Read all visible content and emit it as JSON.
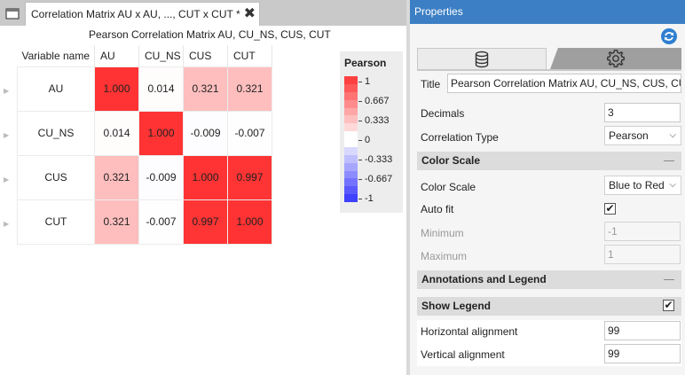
{
  "tab": {
    "label": "Correlation Matrix AU x AU, ..., CUT x CUT *",
    "close_glyph": "✖"
  },
  "matrix": {
    "title": "Pearson Correlation Matrix AU, CU_NS, CUS, CUT",
    "corner_label": "Variable name",
    "columns": [
      "AU",
      "CU_NS",
      "CUS",
      "CUT"
    ],
    "rows": [
      {
        "label": "AU",
        "values": [
          "1.000",
          "0.014",
          "0.321",
          "0.321"
        ]
      },
      {
        "label": "CU_NS",
        "values": [
          "0.014",
          "1.000",
          "-0.009",
          "-0.007"
        ]
      },
      {
        "label": "CUS",
        "values": [
          "0.321",
          "-0.009",
          "1.000",
          "0.997"
        ]
      },
      {
        "label": "CUT",
        "values": [
          "0.321",
          "-0.007",
          "0.997",
          "1.000"
        ]
      }
    ],
    "numeric": [
      [
        1.0,
        0.014,
        0.321,
        0.321
      ],
      [
        0.014,
        1.0,
        -0.009,
        -0.007
      ],
      [
        0.321,
        -0.009,
        1.0,
        0.997
      ],
      [
        0.321,
        -0.007,
        0.997,
        1.0
      ]
    ],
    "color_scale": {
      "positive": "#ff3333",
      "negative": "#3333ff",
      "neutral": "#ffffff"
    }
  },
  "legend": {
    "title": "Pearson",
    "ticks": [
      "1",
      "0.667",
      "0.333",
      "0",
      "-0.333",
      "-0.667",
      "-1"
    ]
  },
  "props": {
    "header": "Properties",
    "title_label": "Title",
    "title_value": "Pearson Correlation Matrix AU, CU_NS, CUS, CUT",
    "decimals_label": "Decimals",
    "decimals_value": "3",
    "corr_type_label": "Correlation Type",
    "corr_type_value": "Pearson",
    "section_color_scale": "Color Scale",
    "color_scale_label": "Color Scale",
    "color_scale_value": "Blue to Red",
    "auto_fit_label": "Auto fit",
    "auto_fit_checked": "✔",
    "minimum_label": "Minimum",
    "minimum_value": "-1",
    "maximum_label": "Maximum",
    "maximum_value": "1",
    "section_annotations": "Annotations and Legend",
    "section_show_legend": "Show Legend",
    "show_legend_checked": "✔",
    "h_align_label": "Horizontal alignment",
    "h_align_value": "99",
    "v_align_label": "Vertical alignment",
    "v_align_value": "99"
  },
  "colors": {
    "header_blue": "#3c7fc4",
    "accent_refresh": "#2f7fd0"
  }
}
